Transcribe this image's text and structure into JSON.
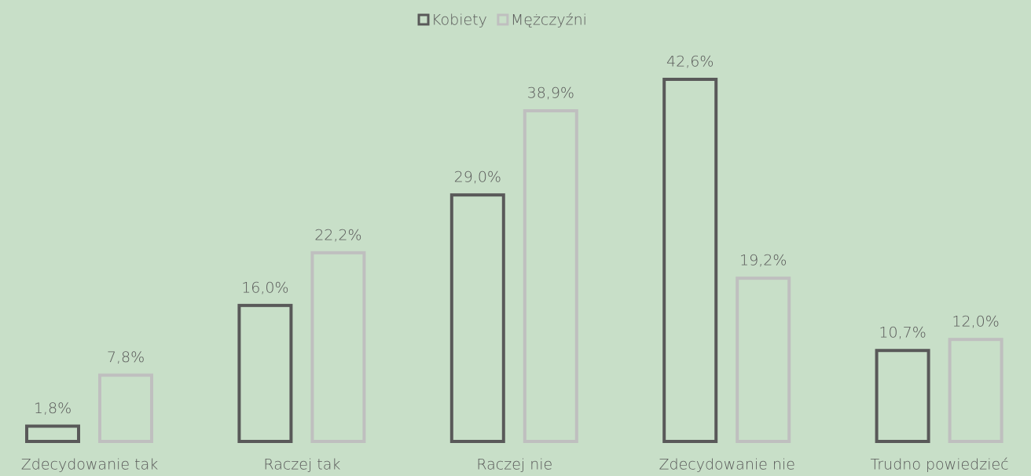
{
  "chart_data": {
    "type": "bar",
    "categories": [
      "Zdecydowanie tak",
      "Raczej tak",
      "Raczej nie",
      "Zdecydowanie nie",
      "Trudno powiedzieć"
    ],
    "series": [
      {
        "name": "Kobiety",
        "color": "#595959",
        "values": [
          1.8,
          16.0,
          29.0,
          42.6,
          10.7
        ],
        "value_labels": [
          "1,8%",
          "16,0%",
          "29,0%",
          "42,6%",
          "10,7%"
        ]
      },
      {
        "name": "Mężczyźni",
        "color": "#bfbfbf",
        "values": [
          7.8,
          22.2,
          38.9,
          19.2,
          12.0
        ],
        "value_labels": [
          "7,8%",
          "22,2%",
          "38,9%",
          "19,2%",
          "12,0%"
        ]
      }
    ],
    "legend": "top"
  }
}
